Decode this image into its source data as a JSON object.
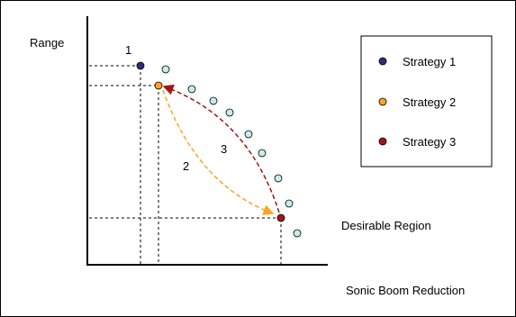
{
  "axes": {
    "y_label": "Range",
    "x_label": "Sonic Boom Reduction"
  },
  "region_label": "Desirable Region",
  "arrow_labels": {
    "one": "1",
    "two": "2",
    "three": "3"
  },
  "legend": [
    {
      "label": "Strategy 1",
      "color": "#2b2f7f"
    },
    {
      "label": "Strategy 2",
      "color": "#f5a623"
    },
    {
      "label": "Strategy 3",
      "color": "#a31515"
    }
  ],
  "colors": {
    "pareto_point": "#c6ecec",
    "arrow_strategy_2": "#f5a623",
    "arrow_strategy_3": "#a31515"
  }
}
